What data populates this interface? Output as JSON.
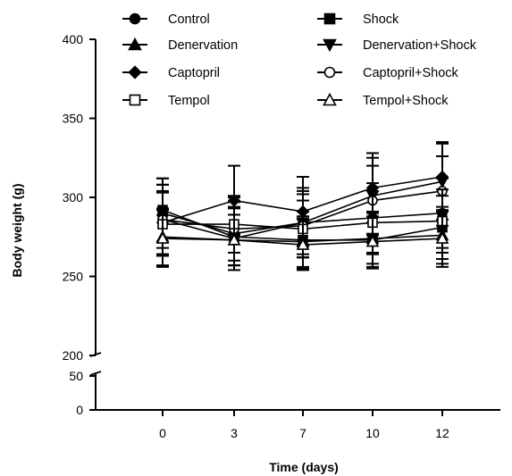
{
  "chart_data": {
    "type": "line",
    "title": "",
    "xlabel": "Time (days)",
    "ylabel": "Body weight (g)",
    "x": [
      0,
      3,
      7,
      10,
      12
    ],
    "x_tick_labels": [
      "0",
      "3",
      "7",
      "10",
      "12"
    ],
    "x_axis_split": true,
    "y_axis_broken": true,
    "y_lower_ticks": [
      "0",
      "50"
    ],
    "y_upper_ticks": [
      "200",
      "250",
      "300",
      "350",
      "400"
    ],
    "y_lower_range": [
      0,
      50
    ],
    "y_upper_range": [
      200,
      400
    ],
    "grid": false,
    "legend_position": "top",
    "series": [
      {
        "name": "Control",
        "marker": "circle-filled",
        "values": [
          290,
          277,
          284,
          287,
          290
        ],
        "errors": [
          22,
          20,
          20,
          22,
          22
        ]
      },
      {
        "name": "Shock",
        "marker": "square-filled",
        "values": [
          292,
          275,
          273,
          273,
          281
        ],
        "errors": [
          20,
          18,
          18,
          18,
          20
        ]
      },
      {
        "name": "Denervation",
        "marker": "triangle-up-filled",
        "values": [
          275,
          273,
          272,
          274,
          276
        ],
        "errors": [
          18,
          16,
          16,
          16,
          18
        ]
      },
      {
        "name": "Denervation+Shock",
        "marker": "triangle-down-filled",
        "values": [
          286,
          274,
          284,
          301,
          310
        ],
        "errors": [
          22,
          20,
          22,
          24,
          24
        ]
      },
      {
        "name": "Captopril",
        "marker": "diamond-filled",
        "values": [
          284,
          298,
          291,
          306,
          313
        ],
        "errors": [
          20,
          22,
          22,
          22,
          22
        ]
      },
      {
        "name": "Captopril+Shock",
        "marker": "circle-open",
        "values": [
          286,
          280,
          282,
          298,
          304
        ],
        "errors": [
          22,
          20,
          20,
          22,
          22
        ]
      },
      {
        "name": "Tempol",
        "marker": "square-open",
        "values": [
          283,
          283,
          280,
          284,
          285
        ],
        "errors": [
          20,
          18,
          18,
          20,
          20
        ]
      },
      {
        "name": "Tempol+Shock",
        "marker": "triangle-up-open",
        "values": [
          274,
          273,
          270,
          272,
          274
        ],
        "errors": [
          18,
          16,
          16,
          16,
          18
        ]
      }
    ]
  }
}
